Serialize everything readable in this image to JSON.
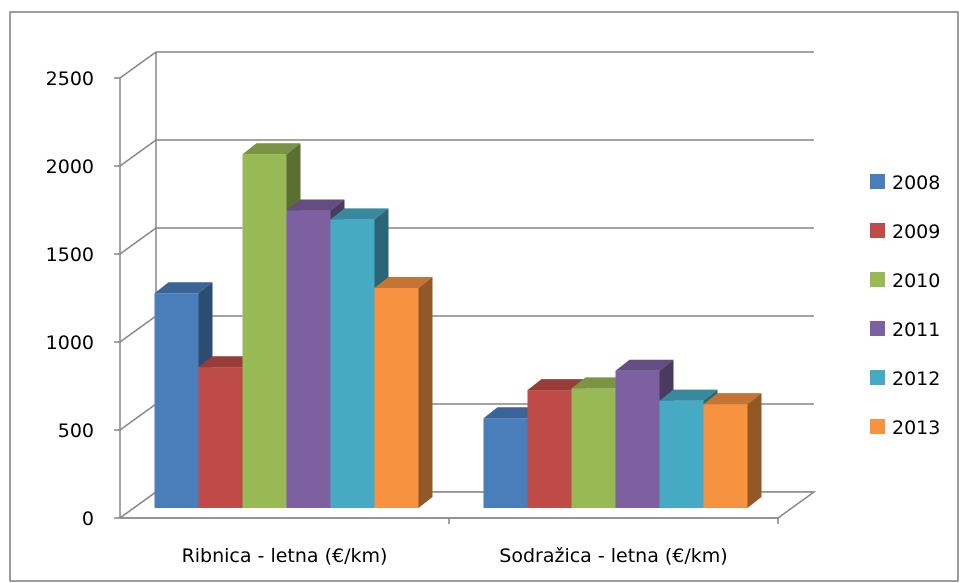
{
  "chart_data": {
    "type": "bar",
    "style": "3d-clustered-column",
    "categories": [
      "Ribnica - letna (€/km)",
      "Sodražica - letna (€/km)"
    ],
    "series": [
      {
        "name": "2008",
        "values": [
          1220,
          510
        ],
        "color": "#4A7EBB"
      },
      {
        "name": "2009",
        "values": [
          800,
          670
        ],
        "color": "#BE4B48"
      },
      {
        "name": "2010",
        "values": [
          2010,
          680
        ],
        "color": "#98B954"
      },
      {
        "name": "2011",
        "values": [
          1690,
          780
        ],
        "color": "#7D60A0"
      },
      {
        "name": "2012",
        "values": [
          1640,
          610
        ],
        "color": "#46AAC5"
      },
      {
        "name": "2013",
        "values": [
          1250,
          590
        ],
        "color": "#F69240"
      }
    ],
    "yticks": [
      0,
      500,
      1000,
      1500,
      2000,
      2500
    ],
    "ylim": [
      0,
      2500
    ],
    "grid": true,
    "legend_position": "right"
  }
}
